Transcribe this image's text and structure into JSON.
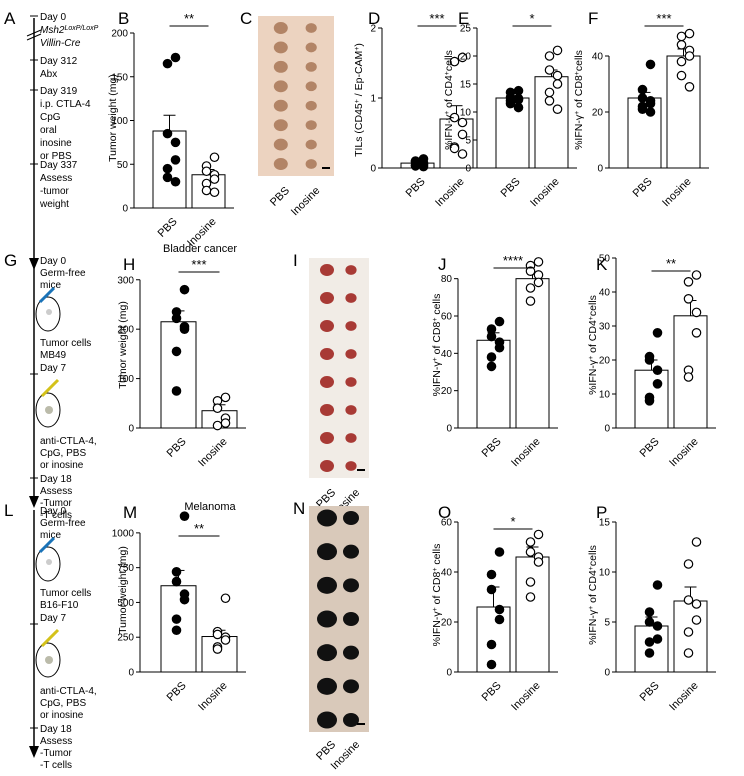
{
  "figure": {
    "rows": [
      {
        "timeline": {
          "letter": "A",
          "steps": [
            {
              "lines": [
                "Day 0",
                "Msh2LoxP/LoxP",
                "Villin-Cre"
              ]
            },
            {
              "lines": [
                "Day 312",
                "Abx"
              ]
            },
            {
              "lines": [
                "Day 319",
                "i.p. CTLA-4",
                "CpG",
                "oral",
                "inosine",
                "or PBS"
              ]
            },
            {
              "lines": [
                "Day 337",
                "Assess",
                "-tumor",
                "weight"
              ]
            }
          ]
        }
      }
    ],
    "photos": [
      {
        "letter": "C",
        "labels": [
          "PBS",
          "Inosine"
        ]
      },
      {
        "letter": "I",
        "labels": [
          "PBS",
          "Inosine"
        ]
      },
      {
        "letter": "N",
        "labels": [
          "PBS",
          "Inosine"
        ]
      }
    ],
    "timelines_mouse": [
      {
        "letter": "G",
        "lines_top": [
          "Day 0",
          "Germ-free",
          "mice"
        ],
        "cells": [
          "Tumor cells",
          "MB49"
        ],
        "day2": "Day 7",
        "treat": [
          "anti-CTLA-4,",
          "CpG, PBS",
          "or inosine"
        ],
        "end": [
          "Day 18",
          "Assess",
          "-Tumor",
          "-T cells"
        ]
      },
      {
        "letter": "L",
        "lines_top": [
          "Day 0",
          "Germ-free",
          "mice"
        ],
        "cells": [
          "Tumor cells",
          "B16-F10"
        ],
        "day2": "Day 7",
        "treat": [
          "anti-CTLA-4,",
          "CpG, PBS",
          "or inosine"
        ],
        "end": [
          "Day 18",
          "Assess",
          "-Tumor",
          "-T cells"
        ]
      }
    ]
  },
  "chart_data": [
    {
      "panel": "B",
      "type": "bar",
      "title": "",
      "categories": [
        "PBS",
        "Inosine"
      ],
      "ylabel": "Tumor weight (mg)",
      "ylim": [
        0,
        200
      ],
      "yticks": [
        0,
        50,
        100,
        150,
        200
      ],
      "significance": "**",
      "series": [
        {
          "values": [
            88,
            38
          ],
          "sem": [
            18,
            6
          ]
        }
      ],
      "points": [
        [
          172,
          165,
          85,
          75,
          55,
          45,
          35,
          30
        ],
        [
          58,
          48,
          42,
          38,
          33,
          28,
          20,
          18
        ]
      ]
    },
    {
      "panel": "D",
      "type": "bar",
      "title": "",
      "categories": [
        "PBS",
        "Inosine"
      ],
      "ylabel": "TILs (CD45+ / Ep-CAM+)",
      "ylim": [
        0,
        2
      ],
      "yticks": [
        0,
        1,
        2
      ],
      "significance": "***",
      "series": [
        {
          "values": [
            0.07,
            0.7
          ],
          "sem": [
            0.02,
            0.19
          ]
        }
      ],
      "points": [
        [
          0.13,
          0.1,
          0.09,
          0.07,
          0.05,
          0.04,
          0.03,
          0.02
        ],
        [
          1.58,
          1.52,
          0.72,
          0.65,
          0.48,
          0.3,
          0.28,
          0.2
        ]
      ]
    },
    {
      "panel": "E",
      "type": "bar",
      "title": "",
      "categories": [
        "PBS",
        "Inosine"
      ],
      "ylabel": "%IFN-γ+ of CD4+cells",
      "ylim": [
        0,
        25
      ],
      "yticks": [
        0,
        5,
        10,
        15,
        20,
        25
      ],
      "significance": "*",
      "series": [
        {
          "values": [
            12.5,
            16.3
          ],
          "sem": [
            0.4,
            1.2
          ]
        }
      ],
      "points": [
        [
          13.8,
          13.5,
          12.6,
          12.4,
          12.2,
          12.0,
          11.5,
          10.8
        ],
        [
          21,
          20,
          17.5,
          16.5,
          15,
          13.5,
          12,
          10.5
        ]
      ]
    },
    {
      "panel": "F",
      "type": "bar",
      "title": "",
      "categories": [
        "PBS",
        "Inosine"
      ],
      "ylabel": "%IFN-γ+ of CD8+cells",
      "ylim": [
        0,
        50
      ],
      "yticks": [
        0,
        20,
        40
      ],
      "significance": "***",
      "series": [
        {
          "values": [
            25,
            40
          ],
          "sem": [
            2,
            2.5
          ]
        }
      ],
      "points": [
        [
          37,
          28,
          25,
          24,
          23,
          22,
          21,
          20
        ],
        [
          48,
          47,
          44,
          42,
          40,
          38,
          33,
          29
        ]
      ]
    },
    {
      "panel": "H",
      "type": "bar",
      "title": "Bladder cancer",
      "categories": [
        "PBS",
        "Inosine"
      ],
      "ylabel": "Tumor weight (mg)",
      "ylim": [
        0,
        340
      ],
      "yticks": [
        0,
        100,
        200,
        300
      ],
      "significance": "***",
      "series": [
        {
          "values": [
            215,
            35
          ],
          "sem": [
            22,
            12
          ]
        }
      ],
      "points": [
        [
          280,
          235,
          222,
          205,
          200,
          155,
          75
        ],
        [
          62,
          55,
          40,
          20,
          10,
          5
        ]
      ]
    },
    {
      "panel": "J",
      "type": "bar",
      "title": "",
      "categories": [
        "PBS",
        "Inosine"
      ],
      "ylabel": "%IFN-γ+ of CD8+ cells",
      "ylim": [
        0,
        90
      ],
      "yticks": [
        0,
        20,
        40,
        60,
        80
      ],
      "significance": "****",
      "series": [
        {
          "values": [
            47,
            80
          ],
          "sem": [
            4,
            3
          ]
        }
      ],
      "points": [
        [
          57,
          53,
          49,
          46,
          43,
          38,
          33
        ],
        [
          89,
          87,
          84,
          82,
          78,
          75,
          68
        ]
      ]
    },
    {
      "panel": "K",
      "type": "bar",
      "title": "",
      "categories": [
        "PBS",
        "Inosine"
      ],
      "ylabel": "%IFN-γ+ of CD4+cells",
      "ylim": [
        0,
        50
      ],
      "yticks": [
        0,
        10,
        20,
        30,
        40,
        50
      ],
      "significance": "**",
      "series": [
        {
          "values": [
            17,
            33
          ],
          "sem": [
            3,
            4.5
          ]
        }
      ],
      "points": [
        [
          28,
          21,
          20,
          17,
          13,
          9,
          8
        ],
        [
          45,
          43,
          38,
          34,
          28,
          17,
          15
        ]
      ]
    },
    {
      "panel": "M",
      "type": "bar",
      "title": "Melanoma",
      "categories": [
        "PBS",
        "Inosine"
      ],
      "ylabel": "Tumor weight (mg)",
      "ylim": [
        0,
        1150
      ],
      "yticks": [
        0,
        250,
        500,
        750,
        1000
      ],
      "significance": "**",
      "series": [
        {
          "values": [
            620,
            255
          ],
          "sem": [
            110,
            45
          ]
        }
      ],
      "points": [
        [
          1120,
          720,
          650,
          560,
          520,
          380,
          300
        ],
        [
          530,
          290,
          270,
          250,
          230,
          180,
          165
        ]
      ]
    },
    {
      "panel": "O",
      "type": "bar",
      "title": "",
      "categories": [
        "PBS",
        "Inosine"
      ],
      "ylabel": "%IFN-γ+ of CD8+ cells",
      "ylim": [
        0,
        60
      ],
      "yticks": [
        0,
        20,
        40,
        60
      ],
      "significance": "*",
      "series": [
        {
          "values": [
            26,
            46
          ],
          "sem": [
            8,
            4
          ]
        }
      ],
      "points": [
        [
          48,
          39,
          33,
          25,
          21,
          11,
          3
        ],
        [
          55,
          52,
          48,
          46,
          44,
          36,
          30
        ]
      ]
    },
    {
      "panel": "P",
      "type": "bar",
      "title": "",
      "categories": [
        "PBS",
        "Inosine"
      ],
      "ylabel": "%IFN-γ+ of CD4+cells",
      "ylim": [
        0,
        15
      ],
      "yticks": [
        0,
        5,
        10,
        15
      ],
      "significance": "",
      "series": [
        {
          "values": [
            4.6,
            7.1
          ],
          "sem": [
            0.9,
            1.4
          ]
        }
      ],
      "points": [
        [
          8.7,
          6.0,
          5.0,
          4.6,
          3.3,
          3.0,
          1.9
        ],
        [
          13,
          10.8,
          7.2,
          6.8,
          5.2,
          4.0,
          1.9
        ]
      ]
    }
  ]
}
